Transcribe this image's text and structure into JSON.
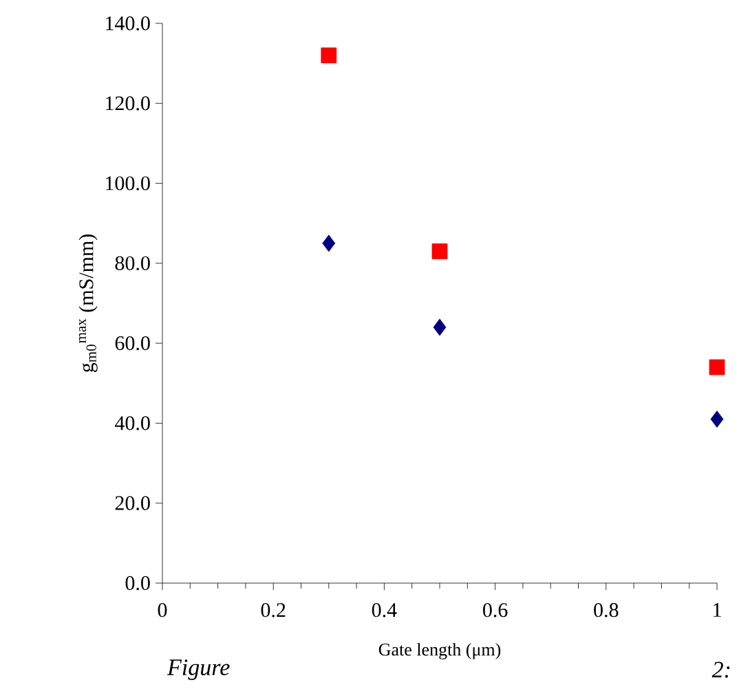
{
  "chart_data": {
    "type": "scatter",
    "xlabel": "Gate length (μm)",
    "ylabel": "g$_{m0}$$^{max}$ (mS/mm)",
    "xlim": [
      0,
      1
    ],
    "ylim": [
      0,
      140
    ],
    "xticks": [
      {
        "value": 0,
        "label": "0"
      },
      {
        "value": 0.2,
        "label": "0.2"
      },
      {
        "value": 0.4,
        "label": "0.4"
      },
      {
        "value": 0.6,
        "label": "0.6"
      },
      {
        "value": 0.8,
        "label": "0.8"
      },
      {
        "value": 1,
        "label": "1"
      }
    ],
    "yticks": [
      {
        "value": 0,
        "label": "0.0"
      },
      {
        "value": 20,
        "label": "20.0"
      },
      {
        "value": 40,
        "label": "40.0"
      },
      {
        "value": 60,
        "label": "60.0"
      },
      {
        "value": 80,
        "label": "80.0"
      },
      {
        "value": 100,
        "label": "100.0"
      },
      {
        "value": 120,
        "label": "120.0"
      },
      {
        "value": 140,
        "label": "140.0"
      }
    ],
    "series": [
      {
        "color": "#ff0000",
        "marker": "square",
        "x": [
          0.3,
          0.5,
          1.0
        ],
        "values": [
          132,
          83,
          54
        ]
      },
      {
        "color": "#000080",
        "marker": "diamond",
        "x": [
          0.3,
          0.5,
          1.0
        ],
        "values": [
          85,
          64,
          41
        ]
      }
    ],
    "annotations": [
      "Figure",
      "2:"
    ]
  }
}
